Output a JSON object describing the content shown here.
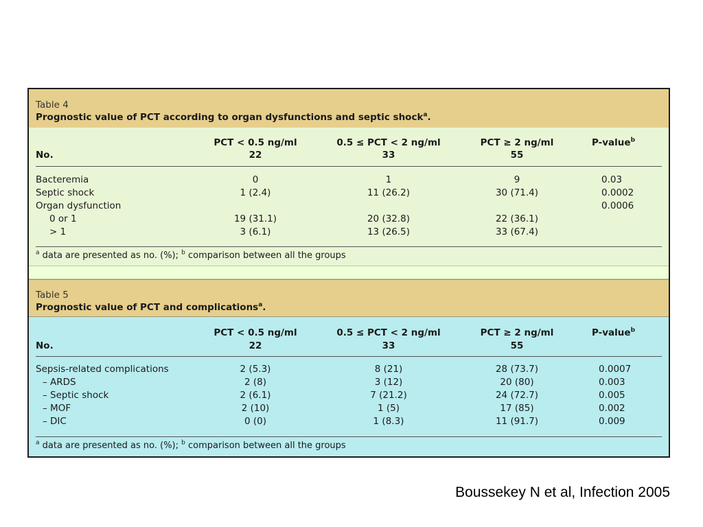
{
  "table4": {
    "label": "Table 4",
    "caption": "Prognostic value of PCT according to organ dysfunctions and septic shock",
    "caption_sup": "a",
    "caption_end": ".",
    "headers": {
      "rowhead": "No.",
      "col1": "PCT < 0.5 ng/ml",
      "col2": "0.5 ≤ PCT < 2 ng/ml",
      "col3": "PCT ≥ 2 ng/ml",
      "col4": "P-value",
      "col4_sup": "b",
      "n1": "22",
      "n2": "33",
      "n3": "55"
    },
    "rows": [
      {
        "label": "Bacteremia",
        "c1": "0",
        "c2": "1",
        "c3": "9",
        "p": "0.03"
      },
      {
        "label": "Septic shock",
        "c1": "1 (2.4)",
        "c2": "11 (26.2)",
        "c3": "30 (71.4)",
        "p": "0.0002"
      },
      {
        "label": "Organ dysfunction",
        "c1": "",
        "c2": "",
        "c3": "",
        "p": "0.0006"
      },
      {
        "label": "0 or 1",
        "c1": "19 (31.1)",
        "c2": "20 (32.8)",
        "c3": "22 (36.1)",
        "p": ""
      },
      {
        "label": "> 1",
        "c1": "3 (6.1)",
        "c2": "13 (26.5)",
        "c3": "33 (67.4)",
        "p": ""
      }
    ],
    "footnote_a": "a",
    "footnote_text1": " data are presented as no. (%); ",
    "footnote_b": "b",
    "footnote_text2": " comparison between all the groups"
  },
  "table5": {
    "label": "Table 5",
    "caption": "Prognostic value of PCT and complications",
    "caption_sup": "a",
    "caption_end": ".",
    "headers": {
      "rowhead": "No.",
      "col1": "PCT < 0.5 ng/ml",
      "col2": "0.5 ≤ PCT < 2 ng/ml",
      "col3": "PCT ≥ 2 ng/ml",
      "col4": "P-value",
      "col4_sup": "b",
      "n1": "22",
      "n2": "33",
      "n3": "55"
    },
    "rows": [
      {
        "label": "Sepsis-related complications",
        "c1": "2 (5.3)",
        "c2": "8 (21)",
        "c3": "28 (73.7)",
        "p": "0.0007"
      },
      {
        "label": "– ARDS",
        "c1": "2 (8)",
        "c2": "3 (12)",
        "c3": "20 (80)",
        "p": "0.003"
      },
      {
        "label": "– Septic shock",
        "c1": "2 (6.1)",
        "c2": "7 (21.2)",
        "c3": "24 (72.7)",
        "p": "0.005"
      },
      {
        "label": "– MOF",
        "c1": "2 (10)",
        "c2": "1 (5)",
        "c3": "17 (85)",
        "p": "0.002"
      },
      {
        "label": "– DIC",
        "c1": "0 (0)",
        "c2": "1 (8.3)",
        "c3": "11 (91.7)",
        "p": "0.009"
      }
    ],
    "footnote_a": "a",
    "footnote_text1": " data are presented as no. (%); ",
    "footnote_b": "b",
    "footnote_text2": " comparison between all the groups"
  },
  "citation": "Boussekey N et al, Infection 2005"
}
